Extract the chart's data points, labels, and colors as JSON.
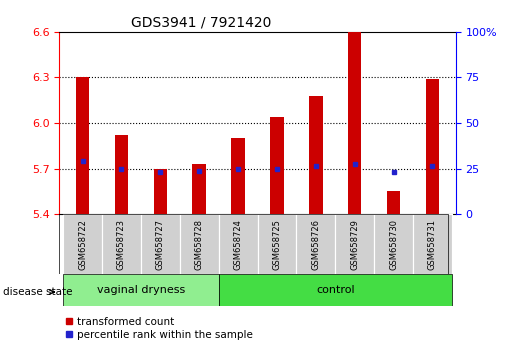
{
  "title": "GDS3941 / 7921420",
  "samples": [
    "GSM658722",
    "GSM658723",
    "GSM658727",
    "GSM658728",
    "GSM658724",
    "GSM658725",
    "GSM658726",
    "GSM658729",
    "GSM658730",
    "GSM658731"
  ],
  "bar_values": [
    6.3,
    5.92,
    5.7,
    5.73,
    5.9,
    6.04,
    6.18,
    6.6,
    5.55,
    6.29
  ],
  "blue_values": [
    5.75,
    5.7,
    5.68,
    5.685,
    5.7,
    5.7,
    5.715,
    5.73,
    5.675,
    5.72
  ],
  "bar_bottom": 5.4,
  "ylim_left": [
    5.4,
    6.6
  ],
  "ylim_right": [
    0,
    100
  ],
  "yticks_left": [
    5.4,
    5.7,
    6.0,
    6.3,
    6.6
  ],
  "yticks_right": [
    0,
    25,
    50,
    75,
    100
  ],
  "grid_lines": [
    5.7,
    6.0,
    6.3
  ],
  "bar_color": "#cc0000",
  "blue_color": "#2222cc",
  "group1_label": "vaginal dryness",
  "group2_label": "control",
  "group1_count": 4,
  "group2_count": 6,
  "disease_state_label": "disease state",
  "legend_bar_label": "transformed count",
  "legend_blue_label": "percentile rank within the sample",
  "plot_bg": "#ffffff",
  "label_bg": "#d0d0d0",
  "group1_bg": "#90ee90",
  "group2_bg": "#44dd44",
  "bar_width": 0.35
}
